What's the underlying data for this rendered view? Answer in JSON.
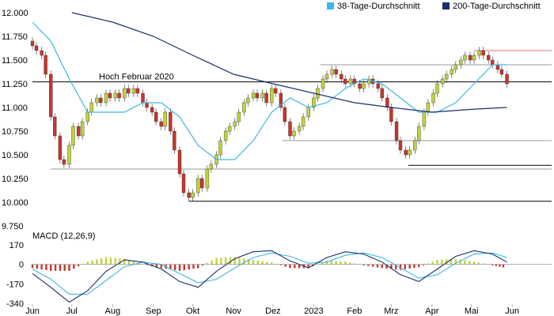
{
  "chart_data": [
    {
      "type": "candlestick",
      "title": "",
      "xlabel": "",
      "ylabel": "",
      "ylim": [
        9750,
        12000
      ],
      "y_ticks": [
        "12.000",
        "11.750",
        "11.500",
        "11.250",
        "11.000",
        "10.750",
        "10.500",
        "10.250",
        "10.000",
        "9.750"
      ],
      "y_tick_values": [
        12000,
        11750,
        11500,
        11250,
        11000,
        10750,
        10500,
        10250,
        10000,
        9750
      ],
      "x_tick_labels": [
        "Jun",
        "Jul",
        "Aug",
        "Sep",
        "Okt",
        "Nov",
        "Dez",
        "2023",
        "Feb",
        "Mrz",
        "Apr",
        "Mai",
        "Jun"
      ],
      "x_tick_values": [
        "2022-06",
        "2022-07",
        "2022-08",
        "2022-09",
        "2022-10",
        "2022-11",
        "2022-12",
        "2023-01",
        "2023-02",
        "2023-03",
        "2023-04",
        "2023-05",
        "2023-06"
      ],
      "legend_position": "top-right",
      "legend": [
        {
          "name": "38-Tage-Durchschnitt",
          "color": "#3cb8e6"
        },
        {
          "name": "200-Tage-Durchschnitt",
          "color": "#1a2e6b"
        }
      ],
      "colors": {
        "up": "#c4d23c",
        "down": "#c9342b",
        "ma38": "#3cb8e6",
        "ma200": "#1a2e6b",
        "level_line": "#000000",
        "level_line_red": "#e07070",
        "level_line_grey": "#999999"
      },
      "annotation": {
        "text": "Hoch Februar 2020",
        "value": 11270
      },
      "levels": [
        {
          "value": 11270,
          "from": "2022-06",
          "color": "black"
        },
        {
          "value": 11600,
          "from": "2023-05-03",
          "color": "red"
        },
        {
          "value": 11450,
          "from": "2023-01-06",
          "color": "grey"
        },
        {
          "value": 10650,
          "from": "2022-12-08",
          "color": "grey"
        },
        {
          "value": 10390,
          "from": "2023-03-14",
          "color": "black"
        },
        {
          "value": 10350,
          "from": "2022-06-15",
          "color": "grey"
        },
        {
          "value": 10010,
          "from": "2022-09-28",
          "color": "black"
        }
      ],
      "close_series": [
        [
          "2022-06-01",
          11650
        ],
        [
          "2022-06-04",
          11600
        ],
        [
          "2022-06-08",
          11550
        ],
        [
          "2022-06-11",
          11350
        ],
        [
          "2022-06-15",
          10900
        ],
        [
          "2022-06-18",
          10700
        ],
        [
          "2022-06-22",
          10450
        ],
        [
          "2022-06-25",
          10400
        ],
        [
          "2022-06-29",
          10600
        ],
        [
          "2022-07-02",
          10800
        ],
        [
          "2022-07-06",
          10700
        ],
        [
          "2022-07-09",
          10850
        ],
        [
          "2022-07-13",
          10950
        ],
        [
          "2022-07-16",
          11050
        ],
        [
          "2022-07-20",
          11100
        ],
        [
          "2022-07-23",
          11050
        ],
        [
          "2022-07-27",
          11150
        ],
        [
          "2022-07-30",
          11100
        ],
        [
          "2022-08-03",
          11150
        ],
        [
          "2022-08-06",
          11100
        ],
        [
          "2022-08-10",
          11200
        ],
        [
          "2022-08-13",
          11150
        ],
        [
          "2022-08-17",
          11200
        ],
        [
          "2022-08-20",
          11150
        ],
        [
          "2022-08-24",
          11050
        ],
        [
          "2022-08-27",
          11000
        ],
        [
          "2022-08-31",
          10950
        ],
        [
          "2022-09-03",
          10850
        ],
        [
          "2022-09-07",
          10800
        ],
        [
          "2022-09-10",
          10950
        ],
        [
          "2022-09-14",
          10750
        ],
        [
          "2022-09-17",
          10550
        ],
        [
          "2022-09-21",
          10300
        ],
        [
          "2022-09-24",
          10100
        ],
        [
          "2022-09-28",
          10050
        ],
        [
          "2022-10-01",
          10100
        ],
        [
          "2022-10-05",
          10250
        ],
        [
          "2022-10-08",
          10150
        ],
        [
          "2022-10-12",
          10350
        ],
        [
          "2022-10-15",
          10400
        ],
        [
          "2022-10-19",
          10500
        ],
        [
          "2022-10-22",
          10650
        ],
        [
          "2022-10-26",
          10750
        ],
        [
          "2022-10-29",
          10800
        ],
        [
          "2022-11-02",
          10850
        ],
        [
          "2022-11-05",
          10950
        ],
        [
          "2022-11-09",
          11050
        ],
        [
          "2022-11-12",
          11100
        ],
        [
          "2022-11-16",
          11150
        ],
        [
          "2022-11-19",
          11100
        ],
        [
          "2022-11-23",
          11150
        ],
        [
          "2022-11-26",
          11050
        ],
        [
          "2022-11-30",
          11200
        ],
        [
          "2022-12-03",
          11150
        ],
        [
          "2022-12-07",
          11000
        ],
        [
          "2022-12-10",
          10850
        ],
        [
          "2022-12-14",
          10700
        ],
        [
          "2022-12-17",
          10750
        ],
        [
          "2022-12-21",
          10800
        ],
        [
          "2022-12-24",
          10900
        ],
        [
          "2022-12-28",
          11000
        ],
        [
          "2023-01-01",
          11100
        ],
        [
          "2023-01-04",
          11200
        ],
        [
          "2023-01-08",
          11300
        ],
        [
          "2023-01-11",
          11350
        ],
        [
          "2023-01-15",
          11400
        ],
        [
          "2023-01-18",
          11350
        ],
        [
          "2023-01-22",
          11300
        ],
        [
          "2023-01-25",
          11250
        ],
        [
          "2023-01-29",
          11300
        ],
        [
          "2023-02-01",
          11250
        ],
        [
          "2023-02-05",
          11200
        ],
        [
          "2023-02-08",
          11250
        ],
        [
          "2023-02-12",
          11300
        ],
        [
          "2023-02-15",
          11250
        ],
        [
          "2023-02-19",
          11200
        ],
        [
          "2023-02-22",
          11100
        ],
        [
          "2023-02-26",
          11000
        ],
        [
          "2023-03-01",
          10850
        ],
        [
          "2023-03-05",
          10650
        ],
        [
          "2023-03-08",
          10550
        ],
        [
          "2023-03-12",
          10500
        ],
        [
          "2023-03-15",
          10550
        ],
        [
          "2023-03-19",
          10650
        ],
        [
          "2023-03-22",
          10800
        ],
        [
          "2023-03-26",
          10950
        ],
        [
          "2023-03-29",
          11050
        ],
        [
          "2023-04-02",
          11150
        ],
        [
          "2023-04-05",
          11250
        ],
        [
          "2023-04-09",
          11300
        ],
        [
          "2023-04-12",
          11350
        ],
        [
          "2023-04-16",
          11400
        ],
        [
          "2023-04-19",
          11450
        ],
        [
          "2023-04-23",
          11500
        ],
        [
          "2023-04-26",
          11550
        ],
        [
          "2023-04-30",
          11500
        ],
        [
          "2023-05-03",
          11550
        ],
        [
          "2023-05-07",
          11600
        ],
        [
          "2023-05-10",
          11550
        ],
        [
          "2023-05-14",
          11500
        ],
        [
          "2023-05-17",
          11450
        ],
        [
          "2023-05-21",
          11400
        ],
        [
          "2023-05-24",
          11350
        ],
        [
          "2023-05-28",
          11250
        ]
      ],
      "ma38_series": [
        [
          "2022-06-01",
          11900
        ],
        [
          "2022-06-15",
          11700
        ],
        [
          "2022-06-29",
          11300
        ],
        [
          "2022-07-13",
          10950
        ],
        [
          "2022-07-27",
          10950
        ],
        [
          "2022-08-10",
          10950
        ],
        [
          "2022-08-24",
          11050
        ],
        [
          "2022-09-07",
          11050
        ],
        [
          "2022-09-21",
          10900
        ],
        [
          "2022-10-05",
          10600
        ],
        [
          "2022-10-19",
          10450
        ],
        [
          "2022-11-02",
          10450
        ],
        [
          "2022-11-16",
          10650
        ],
        [
          "2022-11-30",
          10950
        ],
        [
          "2022-12-14",
          11100
        ],
        [
          "2022-12-28",
          11000
        ],
        [
          "2023-01-11",
          11050
        ],
        [
          "2023-01-25",
          11200
        ],
        [
          "2023-02-08",
          11300
        ],
        [
          "2023-02-22",
          11250
        ],
        [
          "2023-03-08",
          11100
        ],
        [
          "2023-03-22",
          10950
        ],
        [
          "2023-04-05",
          10950
        ],
        [
          "2023-04-19",
          11050
        ],
        [
          "2023-05-03",
          11250
        ],
        [
          "2023-05-17",
          11450
        ],
        [
          "2023-05-28",
          11450
        ]
      ],
      "ma200_series": [
        [
          "2022-07-01",
          12000
        ],
        [
          "2022-08-01",
          11900
        ],
        [
          "2022-09-01",
          11750
        ],
        [
          "2022-10-01",
          11550
        ],
        [
          "2022-11-01",
          11350
        ],
        [
          "2022-12-01",
          11250
        ],
        [
          "2023-01-01",
          11150
        ],
        [
          "2023-02-01",
          11050
        ],
        [
          "2023-03-01",
          11000
        ],
        [
          "2023-04-01",
          10950
        ],
        [
          "2023-05-01",
          10980
        ],
        [
          "2023-05-28",
          11000
        ]
      ]
    },
    {
      "type": "macd",
      "title": "MACD (12,26,9)",
      "ylim": [
        -340,
        170
      ],
      "y_ticks": [
        "170",
        "0",
        "-170",
        "-340"
      ],
      "y_tick_values": [
        170,
        0,
        -170,
        -340
      ],
      "colors": {
        "hist_pos": "#c4d23c",
        "hist_neg": "#c9342b",
        "macd": "#1a2e6b",
        "signal": "#3cb8e6"
      },
      "macd_series": [
        [
          "2022-06-01",
          -80
        ],
        [
          "2022-06-15",
          -200
        ],
        [
          "2022-06-29",
          -330
        ],
        [
          "2022-07-13",
          -230
        ],
        [
          "2022-07-27",
          -60
        ],
        [
          "2022-08-10",
          40
        ],
        [
          "2022-08-24",
          20
        ],
        [
          "2022-09-07",
          -40
        ],
        [
          "2022-09-21",
          -150
        ],
        [
          "2022-10-05",
          -200
        ],
        [
          "2022-10-19",
          -60
        ],
        [
          "2022-11-02",
          50
        ],
        [
          "2022-11-16",
          110
        ],
        [
          "2022-11-30",
          120
        ],
        [
          "2022-12-14",
          30
        ],
        [
          "2022-12-28",
          -30
        ],
        [
          "2023-01-11",
          60
        ],
        [
          "2023-01-25",
          110
        ],
        [
          "2023-02-08",
          90
        ],
        [
          "2023-02-22",
          20
        ],
        [
          "2023-03-08",
          -90
        ],
        [
          "2023-03-22",
          -150
        ],
        [
          "2023-04-05",
          -40
        ],
        [
          "2023-04-19",
          70
        ],
        [
          "2023-05-03",
          120
        ],
        [
          "2023-05-17",
          90
        ],
        [
          "2023-05-28",
          20
        ]
      ],
      "signal_series": [
        [
          "2022-06-01",
          -40
        ],
        [
          "2022-06-15",
          -130
        ],
        [
          "2022-06-29",
          -260
        ],
        [
          "2022-07-13",
          -260
        ],
        [
          "2022-07-27",
          -140
        ],
        [
          "2022-08-10",
          -20
        ],
        [
          "2022-08-24",
          20
        ],
        [
          "2022-09-07",
          0
        ],
        [
          "2022-09-21",
          -80
        ],
        [
          "2022-10-05",
          -160
        ],
        [
          "2022-10-19",
          -130
        ],
        [
          "2022-11-02",
          -30
        ],
        [
          "2022-11-16",
          60
        ],
        [
          "2022-11-30",
          100
        ],
        [
          "2022-12-14",
          70
        ],
        [
          "2022-12-28",
          10
        ],
        [
          "2023-01-11",
          20
        ],
        [
          "2023-01-25",
          80
        ],
        [
          "2023-02-08",
          100
        ],
        [
          "2023-02-22",
          60
        ],
        [
          "2023-03-08",
          -30
        ],
        [
          "2023-03-22",
          -120
        ],
        [
          "2023-04-05",
          -90
        ],
        [
          "2023-04-19",
          10
        ],
        [
          "2023-05-03",
          90
        ],
        [
          "2023-05-17",
          100
        ],
        [
          "2023-05-28",
          60
        ]
      ]
    }
  ]
}
